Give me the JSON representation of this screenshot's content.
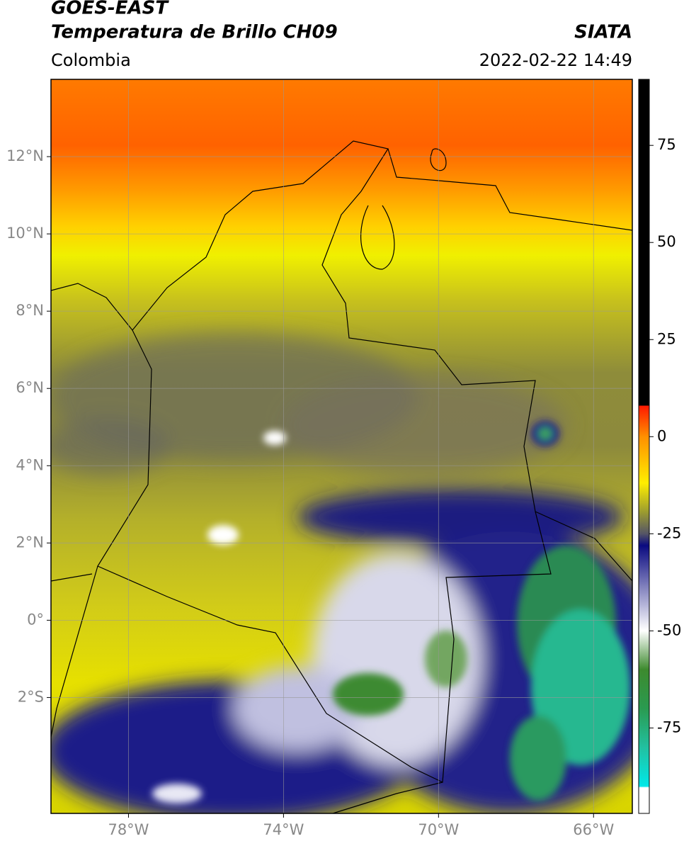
{
  "header": {
    "title": "GOES-EAST",
    "subtitle": "Temperatura de Brillo CH09",
    "region": "Colombia",
    "source": "SIATA",
    "datetime": "2022-02-22 14:49"
  },
  "map": {
    "xlim": [
      -80,
      -65
    ],
    "ylim": [
      -5,
      14
    ],
    "xticks": [
      {
        "value": -78,
        "label": "78°W"
      },
      {
        "value": -74,
        "label": "74°W"
      },
      {
        "value": -70,
        "label": "70°W"
      },
      {
        "value": -66,
        "label": "66°W"
      }
    ],
    "yticks": [
      {
        "value": 12,
        "label": "12°N"
      },
      {
        "value": 10,
        "label": "10°N"
      },
      {
        "value": 8,
        "label": "8°N"
      },
      {
        "value": 6,
        "label": "6°N"
      },
      {
        "value": 4,
        "label": "4°N"
      },
      {
        "value": 2,
        "label": "2°N"
      },
      {
        "value": 0,
        "label": "0°"
      },
      {
        "value": -2,
        "label": "2°S"
      }
    ],
    "grid": true
  },
  "colorbar": {
    "lim": [
      -97,
      92
    ],
    "ticks": [
      75,
      50,
      25,
      0,
      -25,
      -50,
      -75
    ]
  }
}
